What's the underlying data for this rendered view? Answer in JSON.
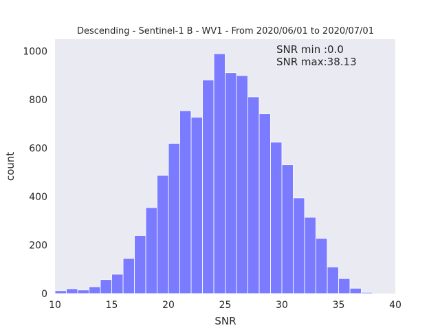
{
  "chart_data": {
    "type": "bar",
    "title": "Descending - Sentinel-1 B - WV1 - From 2020/06/01 to 2020/07/01",
    "xlabel": "SNR",
    "ylabel": "count",
    "xlim": [
      10,
      40
    ],
    "ylim": [
      0,
      1050
    ],
    "grid": false,
    "background": "#eaeaf2",
    "bar_color": "#7b7bff",
    "bar_edge_color": "#f5f5ff",
    "x_ticks": [
      10,
      15,
      20,
      25,
      30,
      35,
      40
    ],
    "y_ticks": [
      0,
      200,
      400,
      600,
      800,
      1000
    ],
    "annotations": [
      "SNR min :0.0",
      "SNR max:38.13"
    ],
    "bin_edges": [
      10,
      11,
      12,
      13,
      14,
      15,
      16,
      17,
      18,
      19,
      20,
      21,
      22,
      23,
      24,
      25,
      26,
      27,
      28,
      29,
      30,
      31,
      32,
      33,
      34,
      35,
      36,
      37,
      38
    ],
    "values": [
      12,
      20,
      15,
      28,
      58,
      80,
      145,
      240,
      355,
      488,
      620,
      755,
      728,
      882,
      990,
      912,
      900,
      812,
      742,
      625,
      532,
      395,
      315,
      228,
      110,
      62,
      22,
      5
    ]
  }
}
